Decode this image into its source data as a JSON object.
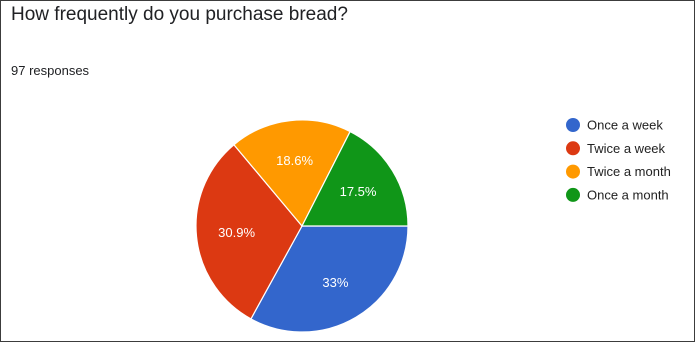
{
  "question": {
    "title": "How frequently do you purchase bread?",
    "responses": "97 responses"
  },
  "chart_data": {
    "type": "pie",
    "legend_position": "right",
    "slices": [
      {
        "name": "Once a week",
        "value": 33,
        "label": "33%",
        "color": "#3366cc"
      },
      {
        "name": "Twice a week",
        "value": 30.9,
        "label": "30.9%",
        "color": "#dc3912"
      },
      {
        "name": "Twice a month",
        "value": 18.6,
        "label": "18.6%",
        "color": "#ff9900"
      },
      {
        "name": "Once a month",
        "value": 17.5,
        "label": "17.5%",
        "color": "#109618"
      }
    ]
  }
}
